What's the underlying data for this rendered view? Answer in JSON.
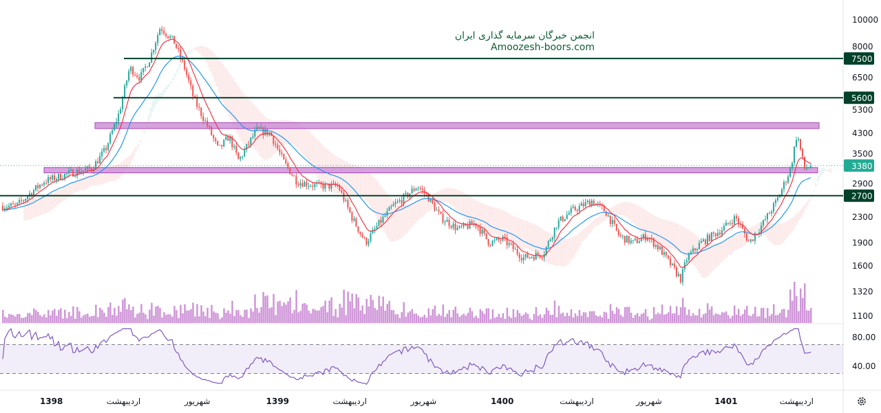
{
  "watermark": {
    "line1": "انجمن خبرگان سرمایه گذاری ایران",
    "line2": "Amoozesh-boors.com"
  },
  "settings_icon": "gear-icon",
  "colors": {
    "up": "#26a69a",
    "down": "#ef5350",
    "ma_fast": "#f23645",
    "ma_slow": "#2196f3",
    "level": "#00412a",
    "zone": "#ce93d8",
    "last": "#22ab94",
    "rsi": "#7e57c2",
    "volume": "#ba68c8"
  },
  "chart_data": {
    "type": "candlestick",
    "yscale": "log",
    "ylim": [
      1100,
      10500
    ],
    "y_ticks": [
      10000,
      8000,
      6500,
      5300,
      4300,
      3500,
      2900,
      2300,
      1900,
      1600,
      1320,
      1100
    ],
    "x_ticks": [
      {
        "label": "1398",
        "pos": 0.06
      },
      {
        "label": "اردیبهشت",
        "pos": 0.149
      },
      {
        "label": "شهریور",
        "pos": 0.24
      },
      {
        "label": "1399",
        "pos": 0.339
      },
      {
        "label": "اردیبهشت",
        "pos": 0.428
      },
      {
        "label": "شهریور",
        "pos": 0.519
      },
      {
        "label": "1400",
        "pos": 0.616
      },
      {
        "label": "اردیبهشت",
        "pos": 0.708
      },
      {
        "label": "شهریور",
        "pos": 0.797
      },
      {
        "label": "1401",
        "pos": 0.892
      },
      {
        "label": "اردیبهشت",
        "pos": 0.979
      }
    ],
    "close_waypoints": [
      [
        0,
        2500
      ],
      [
        0.017,
        2500
      ],
      [
        0.034,
        2750
      ],
      [
        0.051,
        3000
      ],
      [
        0.085,
        3200
      ],
      [
        0.11,
        3300
      ],
      [
        0.127,
        3800
      ],
      [
        0.144,
        5000
      ],
      [
        0.157,
        7000
      ],
      [
        0.17,
        6500
      ],
      [
        0.182,
        7500
      ],
      [
        0.195,
        9500
      ],
      [
        0.212,
        8500
      ],
      [
        0.225,
        7000
      ],
      [
        0.237,
        5500
      ],
      [
        0.254,
        4500
      ],
      [
        0.267,
        3800
      ],
      [
        0.28,
        4200
      ],
      [
        0.292,
        3500
      ],
      [
        0.314,
        4400
      ],
      [
        0.331,
        4300
      ],
      [
        0.347,
        3500
      ],
      [
        0.364,
        3000
      ],
      [
        0.39,
        2900
      ],
      [
        0.415,
        2900
      ],
      [
        0.432,
        2300
      ],
      [
        0.449,
        1900
      ],
      [
        0.466,
        2200
      ],
      [
        0.483,
        2500
      ],
      [
        0.5,
        2700
      ],
      [
        0.513,
        2900
      ],
      [
        0.525,
        2700
      ],
      [
        0.542,
        2300
      ],
      [
        0.564,
        2100
      ],
      [
        0.585,
        2200
      ],
      [
        0.602,
        1900
      ],
      [
        0.619,
        1950
      ],
      [
        0.644,
        1700
      ],
      [
        0.669,
        1750
      ],
      [
        0.686,
        2200
      ],
      [
        0.703,
        2400
      ],
      [
        0.729,
        2600
      ],
      [
        0.746,
        2400
      ],
      [
        0.763,
        2000
      ],
      [
        0.78,
        1900
      ],
      [
        0.797,
        2000
      ],
      [
        0.814,
        1800
      ],
      [
        0.839,
        1450
      ],
      [
        0.847,
        1700
      ],
      [
        0.864,
        1900
      ],
      [
        0.89,
        2100
      ],
      [
        0.907,
        2300
      ],
      [
        0.924,
        1900
      ],
      [
        0.941,
        2200
      ],
      [
        0.958,
        2600
      ],
      [
        0.975,
        3300
      ],
      [
        0.983,
        4300
      ],
      [
        0.992,
        3300
      ],
      [
        1,
        3380
      ]
    ],
    "levels": [
      {
        "value": 7500,
        "label": "7500"
      },
      {
        "value": 5600,
        "label": "5600"
      },
      {
        "value": 2700,
        "label": "2700"
      }
    ],
    "zones": [
      [
        4450,
        4650
      ],
      [
        3200,
        3330
      ]
    ],
    "last_price": {
      "value": 3380,
      "label": "3380"
    },
    "rsi": {
      "levels": [
        70,
        30
      ],
      "ticks": [
        "80.00",
        "40.00"
      ]
    }
  }
}
